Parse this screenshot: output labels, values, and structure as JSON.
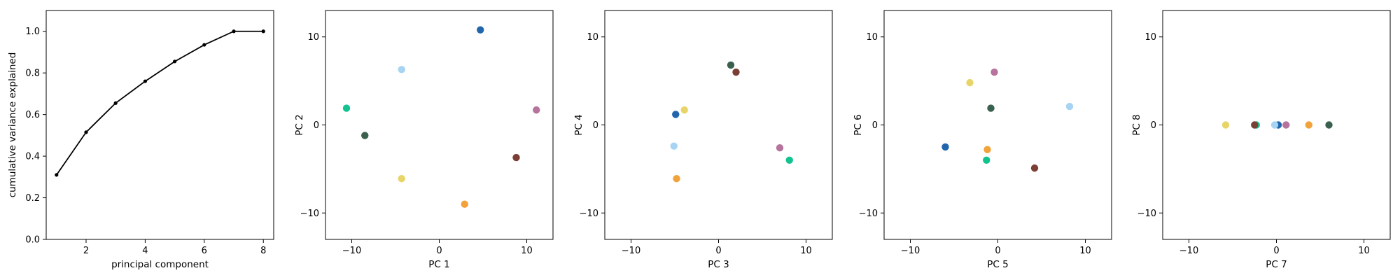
{
  "chart_data": [
    {
      "type": "line",
      "title": "",
      "xlabel": "principal component",
      "ylabel": "cumulative variance explained",
      "xlim": [
        0.65,
        8.35
      ],
      "ylim": [
        0.0,
        1.1
      ],
      "xticks": [
        2,
        4,
        6,
        8
      ],
      "yticks": [
        0.0,
        0.2,
        0.4,
        0.6,
        0.8,
        1.0
      ],
      "ytick_labels": [
        "0.0",
        "0.2",
        "0.4",
        "0.6",
        "0.8",
        "1.0"
      ],
      "grid": false,
      "x": [
        1,
        2,
        3,
        4,
        5,
        6,
        7,
        8
      ],
      "series": [
        {
          "values": [
            0.31,
            0.515,
            0.655,
            0.76,
            0.855,
            0.935,
            1.0,
            1.0
          ],
          "color": "#000000"
        }
      ]
    },
    {
      "type": "scatter",
      "title": "",
      "xlabel": "PC 1",
      "ylabel": "PC 2",
      "xlim": [
        -13,
        13
      ],
      "ylim": [
        -13,
        13
      ],
      "xticks": [
        -10,
        0,
        10
      ],
      "yticks": [
        -10,
        0,
        10
      ],
      "grid": false,
      "points": [
        {
          "x": 4.7,
          "y": 10.8,
          "color": "#2166ac"
        },
        {
          "x": -4.3,
          "y": 6.3,
          "color": "#a6d4f2"
        },
        {
          "x": -10.6,
          "y": 1.9,
          "color": "#13c38f"
        },
        {
          "x": -8.5,
          "y": -1.2,
          "color": "#3a6150"
        },
        {
          "x": 11.1,
          "y": 1.7,
          "color": "#b5739d"
        },
        {
          "x": 8.8,
          "y": -3.7,
          "color": "#7b3f35"
        },
        {
          "x": -4.3,
          "y": -6.1,
          "color": "#e8d56a"
        },
        {
          "x": 2.9,
          "y": -9.0,
          "color": "#f2a23a"
        }
      ]
    },
    {
      "type": "scatter",
      "title": "",
      "xlabel": "PC 3",
      "ylabel": "PC 4",
      "xlim": [
        -13,
        13
      ],
      "ylim": [
        -13,
        13
      ],
      "xticks": [
        -10,
        0,
        10
      ],
      "yticks": [
        -10,
        0,
        10
      ],
      "grid": false,
      "points": [
        {
          "x": 1.4,
          "y": 6.8,
          "color": "#3a6150"
        },
        {
          "x": 2.0,
          "y": 6.0,
          "color": "#7b3f35"
        },
        {
          "x": -3.9,
          "y": 1.7,
          "color": "#e8d56a"
        },
        {
          "x": -4.9,
          "y": 1.2,
          "color": "#2166ac"
        },
        {
          "x": -5.1,
          "y": -2.4,
          "color": "#a6d4f2"
        },
        {
          "x": 7.0,
          "y": -2.6,
          "color": "#b5739d"
        },
        {
          "x": 8.1,
          "y": -4.0,
          "color": "#13c38f"
        },
        {
          "x": -4.8,
          "y": -6.1,
          "color": "#f2a23a"
        }
      ]
    },
    {
      "type": "scatter",
      "title": "",
      "xlabel": "PC 5",
      "ylabel": "PC 6",
      "xlim": [
        -13,
        13
      ],
      "ylim": [
        -13,
        13
      ],
      "xticks": [
        -10,
        0,
        10
      ],
      "yticks": [
        -10,
        0,
        10
      ],
      "grid": false,
      "points": [
        {
          "x": -0.4,
          "y": 6.0,
          "color": "#b5739d"
        },
        {
          "x": -3.2,
          "y": 4.8,
          "color": "#e8d56a"
        },
        {
          "x": 8.2,
          "y": 2.1,
          "color": "#a6d4f2"
        },
        {
          "x": -0.8,
          "y": 1.9,
          "color": "#3a6150"
        },
        {
          "x": -6.0,
          "y": -2.5,
          "color": "#2166ac"
        },
        {
          "x": -1.2,
          "y": -2.8,
          "color": "#f2a23a"
        },
        {
          "x": -1.3,
          "y": -4.0,
          "color": "#13c38f"
        },
        {
          "x": 4.2,
          "y": -4.9,
          "color": "#7b3f35"
        }
      ]
    },
    {
      "type": "scatter",
      "title": "",
      "xlabel": "PC 7",
      "ylabel": "PC 8",
      "xlim": [
        -13,
        13
      ],
      "ylim": [
        -13,
        13
      ],
      "xticks": [
        -10,
        0,
        10
      ],
      "yticks": [
        -10,
        0,
        10
      ],
      "grid": false,
      "points": [
        {
          "x": -5.8,
          "y": 0.0,
          "color": "#e8d56a"
        },
        {
          "x": -2.3,
          "y": 0.0,
          "color": "#13c38f"
        },
        {
          "x": -2.5,
          "y": 0.0,
          "color": "#7b3f35"
        },
        {
          "x": 0.2,
          "y": 0.0,
          "color": "#2166ac"
        },
        {
          "x": -0.2,
          "y": 0.0,
          "color": "#a6d4f2"
        },
        {
          "x": 1.1,
          "y": 0.0,
          "color": "#b5739d"
        },
        {
          "x": 3.7,
          "y": 0.0,
          "color": "#f2a23a"
        },
        {
          "x": 6.0,
          "y": 0.0,
          "color": "#3a6150"
        }
      ]
    }
  ]
}
